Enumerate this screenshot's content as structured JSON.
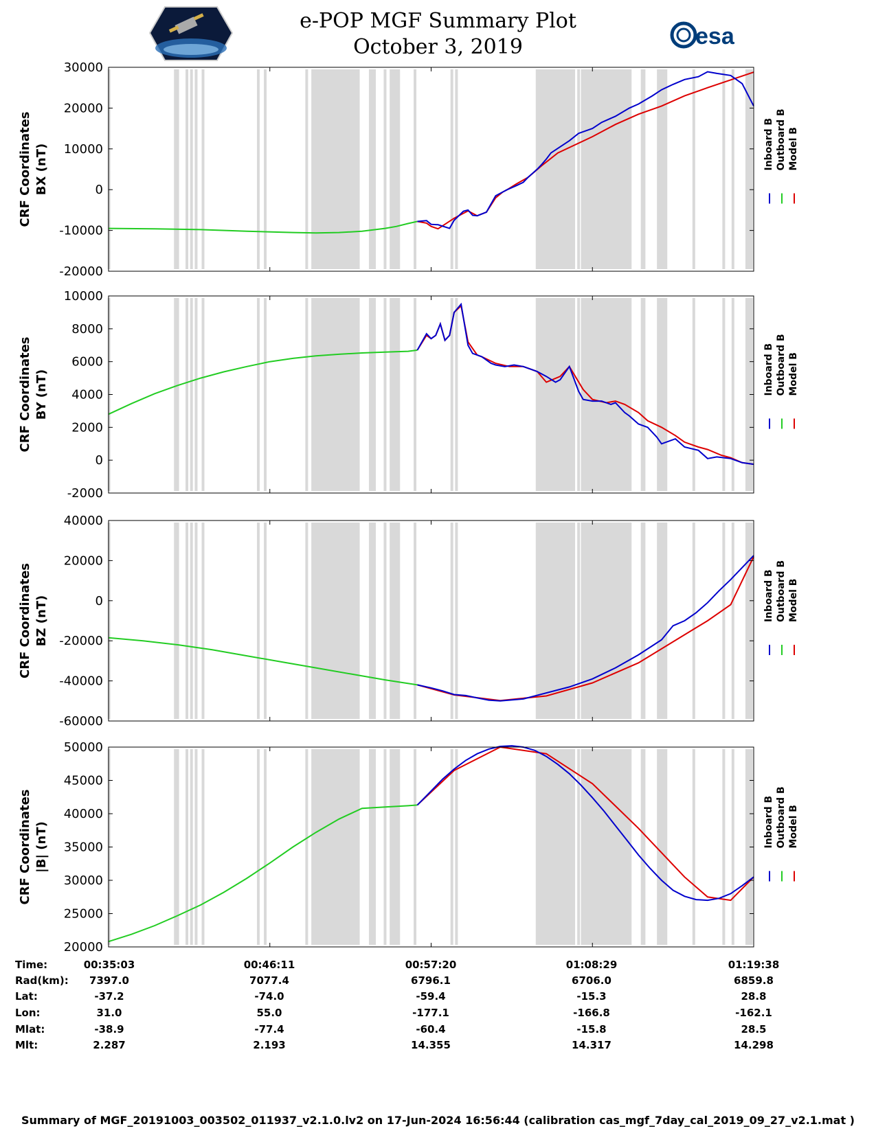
{
  "title": {
    "line1": "e-POP MGF Summary Plot",
    "line2": "October 3, 2019"
  },
  "logos": {
    "right_text": "esa"
  },
  "colors": {
    "inboard": "#0000cc",
    "outboard": "#22cc22",
    "model": "#dd0000",
    "shade": "#d9d9d9"
  },
  "legend": [
    "Inboard B",
    "Outboard B",
    "Model B"
  ],
  "chart_data": [
    {
      "type": "line",
      "ylabel_line1": "CRF Coordinates",
      "ylabel_line2": "BX (nT)",
      "ylim": [
        -20000,
        30000
      ],
      "yticks": [
        30000,
        20000,
        10000,
        0,
        -10000,
        -20000
      ],
      "ytick_labels": [
        "30000",
        "20000",
        "10000",
        "0",
        "-10000",
        "-20000"
      ],
      "xlim": [
        0,
        2800
      ],
      "series": [
        {
          "name": "Outboard B",
          "x": [
            0,
            200,
            400,
            600,
            800,
            900,
            1000,
            1100,
            1200,
            1250,
            1300,
            1340
          ],
          "y": [
            -9500,
            -9600,
            -9800,
            -10200,
            -10500,
            -10600,
            -10500,
            -10200,
            -9500,
            -9000,
            -8300,
            -7800
          ]
        },
        {
          "name": "Model B",
          "x": [
            1340,
            1380,
            1400,
            1430,
            1500,
            1560,
            1600,
            1640,
            1680,
            1710,
            1730,
            1770,
            1820,
            1880,
            1950,
            2100,
            2200,
            2300,
            2400,
            2500,
            2600,
            2800
          ],
          "y": [
            -7800,
            -8200,
            -9000,
            -9600,
            -7000,
            -5200,
            -6400,
            -5500,
            -2000,
            -600,
            0,
            1400,
            3000,
            5900,
            9000,
            13000,
            16000,
            18500,
            20500,
            23000,
            25000,
            28800
          ]
        },
        {
          "name": "Inboard B",
          "x": [
            1340,
            1380,
            1400,
            1430,
            1480,
            1500,
            1540,
            1560,
            1580,
            1600,
            1640,
            1660,
            1680,
            1710,
            1730,
            1770,
            1800,
            1820,
            1860,
            1880,
            1900,
            1920,
            1960,
            2000,
            2040,
            2100,
            2140,
            2200,
            2260,
            2300,
            2360,
            2400,
            2450,
            2500,
            2560,
            2600,
            2640,
            2700,
            2750,
            2800
          ],
          "y": [
            -7800,
            -7600,
            -8500,
            -8600,
            -9500,
            -7500,
            -5300,
            -5000,
            -6300,
            -6400,
            -5500,
            -3500,
            -1500,
            -600,
            0,
            1000,
            1800,
            3000,
            5000,
            6200,
            7500,
            9000,
            10500,
            12000,
            13800,
            15000,
            16500,
            18000,
            20000,
            21000,
            23000,
            24500,
            25800,
            27000,
            27700,
            28900,
            28500,
            28000,
            26000,
            20500
          ]
        }
      ]
    },
    {
      "type": "line",
      "ylabel_line1": "CRF Coordinates",
      "ylabel_line2": "BY (nT)",
      "ylim": [
        -2000,
        10000
      ],
      "yticks": [
        10000,
        8000,
        6000,
        4000,
        2000,
        0,
        -2000
      ],
      "ytick_labels": [
        "10000",
        "8000",
        "6000",
        "4000",
        "2000",
        "0",
        "-2000"
      ],
      "xlim": [
        0,
        2800
      ],
      "series": [
        {
          "name": "Outboard B",
          "x": [
            0,
            100,
            200,
            300,
            400,
            500,
            600,
            700,
            800,
            900,
            1000,
            1100,
            1200,
            1300,
            1340
          ],
          "y": [
            2800,
            3450,
            4050,
            4550,
            5000,
            5380,
            5700,
            6000,
            6200,
            6350,
            6450,
            6530,
            6580,
            6630,
            6700
          ]
        },
        {
          "name": "Model B",
          "x": [
            1340,
            1380,
            1400,
            1420,
            1440,
            1460,
            1480,
            1500,
            1530,
            1560,
            1600,
            1620,
            1680,
            1740,
            1800,
            1860,
            1900,
            1960,
            2000,
            2060,
            2100,
            2160,
            2200,
            2240,
            2300,
            2340,
            2400,
            2460,
            2500,
            2560,
            2600,
            2660,
            2700,
            2750,
            2800
          ],
          "y": [
            6700,
            7600,
            7400,
            7600,
            8300,
            7300,
            7600,
            9000,
            9400,
            7200,
            6400,
            6300,
            5900,
            5700,
            5700,
            5400,
            4750,
            5100,
            5700,
            4300,
            3700,
            3500,
            3600,
            3400,
            2900,
            2400,
            2000,
            1500,
            1100,
            800,
            650,
            300,
            150,
            -150,
            -250
          ]
        },
        {
          "name": "Inboard B",
          "x": [
            1340,
            1360,
            1380,
            1400,
            1420,
            1440,
            1460,
            1480,
            1500,
            1530,
            1560,
            1580,
            1600,
            1620,
            1660,
            1680,
            1720,
            1760,
            1800,
            1840,
            1860,
            1900,
            1940,
            1960,
            2000,
            2040,
            2060,
            2100,
            2140,
            2180,
            2200,
            2240,
            2260,
            2300,
            2340,
            2380,
            2400,
            2460,
            2500,
            2560,
            2600,
            2640,
            2700,
            2750,
            2800
          ],
          "y": [
            6700,
            7200,
            7700,
            7400,
            7600,
            8300,
            7300,
            7600,
            9000,
            9500,
            7000,
            6500,
            6400,
            6300,
            5900,
            5800,
            5700,
            5800,
            5700,
            5500,
            5400,
            5100,
            4750,
            4900,
            5700,
            4200,
            3700,
            3600,
            3600,
            3400,
            3500,
            2900,
            2700,
            2200,
            2000,
            1400,
            1000,
            1300,
            800,
            600,
            100,
            200,
            100,
            -150,
            -250
          ]
        }
      ]
    },
    {
      "type": "line",
      "ylabel_line1": "CRF Coordinates",
      "ylabel_line2": "BZ (nT)",
      "ylim": [
        -60000,
        40000
      ],
      "yticks": [
        40000,
        20000,
        0,
        -20000,
        -40000,
        -60000
      ],
      "ytick_labels": [
        "40000",
        "20000",
        "0",
        "-20000",
        "-40000",
        "-60000"
      ],
      "xlim": [
        0,
        2800
      ],
      "series": [
        {
          "name": "Outboard B",
          "x": [
            0,
            150,
            300,
            450,
            600,
            750,
            900,
            1050,
            1200,
            1340
          ],
          "y": [
            -18500,
            -20000,
            -22000,
            -24500,
            -27500,
            -30500,
            -33500,
            -36500,
            -39500,
            -42000
          ]
        },
        {
          "name": "Model B",
          "x": [
            1340,
            1500,
            1700,
            1900,
            2100,
            2300,
            2500,
            2600,
            2700,
            2800
          ],
          "y": [
            -42000,
            -47000,
            -49800,
            -47500,
            -41000,
            -31000,
            -17000,
            -10000,
            -2000,
            22000
          ]
        },
        {
          "name": "Inboard B",
          "x": [
            1340,
            1400,
            1450,
            1500,
            1550,
            1600,
            1650,
            1700,
            1800,
            1900,
            2000,
            2100,
            2200,
            2300,
            2400,
            2450,
            2500,
            2550,
            2600,
            2650,
            2700,
            2750,
            2800
          ],
          "y": [
            -42000,
            -43500,
            -45000,
            -46800,
            -47300,
            -48500,
            -49600,
            -50000,
            -49000,
            -46000,
            -43000,
            -39000,
            -33500,
            -27000,
            -19500,
            -12500,
            -10000,
            -6000,
            -1000,
            5000,
            10500,
            16500,
            22500
          ]
        }
      ]
    },
    {
      "type": "line",
      "ylabel_line1": "CRF Coordinates",
      "ylabel_line2": "|B| (nT)",
      "ylim": [
        20000,
        50000
      ],
      "yticks": [
        50000,
        45000,
        40000,
        35000,
        30000,
        25000,
        20000
      ],
      "ytick_labels": [
        "50000",
        "45000",
        "40000",
        "35000",
        "30000",
        "25000",
        "20000"
      ],
      "xlim": [
        0,
        2800
      ],
      "series": [
        {
          "name": "Outboard B",
          "x": [
            0,
            100,
            200,
            300,
            400,
            500,
            600,
            700,
            800,
            900,
            1000,
            1100,
            1200,
            1300,
            1340
          ],
          "y": [
            20800,
            21900,
            23200,
            24700,
            26300,
            28200,
            30300,
            32600,
            35000,
            37200,
            39200,
            40800,
            41000,
            41200,
            41300
          ]
        },
        {
          "name": "Model B",
          "x": [
            1340,
            1500,
            1700,
            1900,
            2100,
            2300,
            2500,
            2600,
            2700,
            2800
          ],
          "y": [
            41300,
            46500,
            50000,
            49000,
            44500,
            37800,
            30500,
            27500,
            27000,
            30500
          ]
        },
        {
          "name": "Inboard B",
          "x": [
            1340,
            1400,
            1450,
            1500,
            1550,
            1600,
            1650,
            1700,
            1750,
            1800,
            1850,
            1900,
            1950,
            2000,
            2050,
            2100,
            2150,
            2200,
            2250,
            2300,
            2350,
            2400,
            2450,
            2500,
            2550,
            2600,
            2650,
            2700,
            2750,
            2800
          ],
          "y": [
            41300,
            43400,
            45200,
            46700,
            48000,
            49000,
            49700,
            50100,
            50200,
            50000,
            49500,
            48600,
            47400,
            46000,
            44300,
            42400,
            40400,
            38200,
            36000,
            33800,
            31800,
            30000,
            28500,
            27600,
            27100,
            27000,
            27300,
            28000,
            29200,
            30500
          ]
        }
      ]
    }
  ],
  "shading": {
    "thin_bars": [
      2,
      290,
      300,
      340,
      360,
      380,
      410,
      650,
      680,
      860,
      1200,
      1330,
      1490,
      1510,
      1860,
      1870,
      1960,
      2040,
      2260,
      2400,
      2540,
      2670,
      2710,
      2770,
      2780,
      2790
    ],
    "blocks": [
      [
        880,
        1090
      ],
      [
        1130,
        1160
      ],
      [
        1220,
        1265
      ],
      [
        1860,
        2025
      ],
      [
        2050,
        2270
      ],
      [
        2310,
        2330
      ],
      [
        2380,
        2425
      ]
    ]
  },
  "info_table": {
    "row_labels": [
      "Time:",
      "Rad(km):",
      "Lat:",
      "Lon:",
      "Mlat:",
      "Mlt:"
    ],
    "columns": [
      [
        "00:35:03",
        "7397.0",
        "-37.2",
        "31.0",
        "-38.9",
        "2.287"
      ],
      [
        "00:46:11",
        "7077.4",
        "-74.0",
        "55.0",
        "-77.4",
        "2.193"
      ],
      [
        "00:57:20",
        "6796.1",
        "-59.4",
        "-177.1",
        "-60.4",
        "14.355"
      ],
      [
        "01:08:29",
        "6706.0",
        "-15.3",
        "-166.8",
        "-15.8",
        "14.317"
      ],
      [
        "01:19:38",
        "6859.8",
        "28.8",
        "-162.1",
        "28.5",
        "14.298"
      ]
    ]
  },
  "footer": "Summary of MGF_20191003_003502_011937_v2.1.0.lv2 on 17-Jun-2024 16:56:44 (calibration cas_mgf_7day_cal_2019_09_27_v2.1.mat )"
}
